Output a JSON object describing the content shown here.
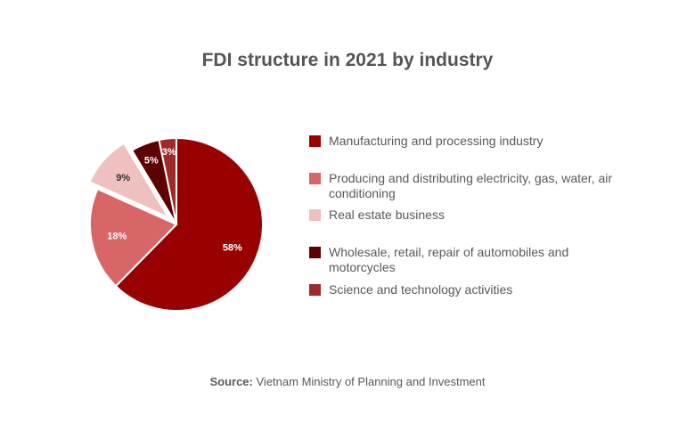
{
  "chart_data": {
    "type": "pie",
    "title": "FDI structure in 2021 by industry",
    "slices": [
      {
        "label": "Manufacturing and processing industry",
        "value": 58,
        "data_label": "58%",
        "color": "#990000",
        "label_color": "#ffffff",
        "exploded": false
      },
      {
        "label": "Producing and distributing electricity, gas, water, air conditioning",
        "value": 18,
        "data_label": "18%",
        "color": "#d96666",
        "label_color": "#ffffff",
        "exploded": false
      },
      {
        "label": "Real estate business",
        "value": 9,
        "data_label": "9%",
        "color": "#efc0c0",
        "label_color": "#333333",
        "exploded": true
      },
      {
        "label": "Wholesale, retail, repair of automobiles and motorcycles",
        "value": 5,
        "data_label": "5%",
        "color": "#5c0000",
        "label_color": "#ffffff",
        "exploded": false
      },
      {
        "label": "Science and technology activities",
        "value": 3,
        "data_label": "3%",
        "color": "#9e2a2b",
        "label_color": "#ffffff",
        "exploded": false
      }
    ],
    "legend_position": "right",
    "source_label": "Source:",
    "source_text": "Vietnam Ministry of Planning and Investment"
  }
}
